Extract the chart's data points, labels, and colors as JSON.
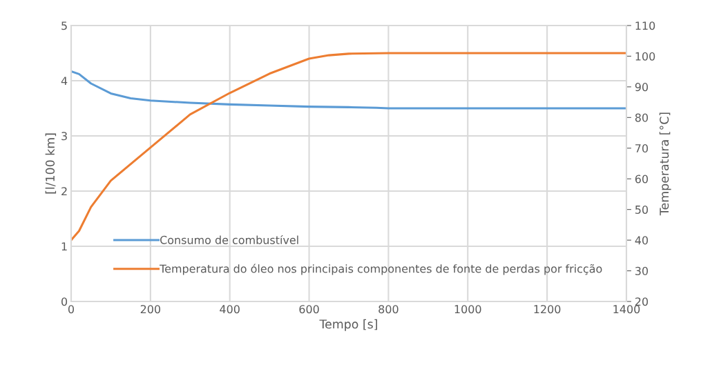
{
  "chart_data": {
    "type": "line",
    "xlabel": "Tempo [s]",
    "ylabel": "[l/100 km]",
    "y2label": "Temperatura [°C]",
    "xlim": [
      0,
      1400
    ],
    "xticks": [
      0,
      200,
      400,
      600,
      800,
      1000,
      1200,
      1400
    ],
    "ylim": [
      0,
      5
    ],
    "yticks": [
      0,
      1,
      2,
      3,
      4,
      5
    ],
    "y2lim": [
      20,
      110
    ],
    "y2ticks": [
      20,
      30,
      40,
      50,
      60,
      70,
      80,
      90,
      100,
      110
    ],
    "grid": true,
    "legend": "bottom left",
    "line_style": "solid",
    "series": [
      {
        "name": "Consumo de combustível",
        "color": "#5b9bd5",
        "x": [
          0,
          20,
          50,
          100,
          150,
          200,
          300,
          400,
          500,
          600,
          700,
          770,
          800,
          1400
        ],
        "values": [
          4.17,
          4.12,
          3.95,
          3.77,
          3.68,
          3.64,
          3.6,
          3.57,
          3.55,
          3.53,
          3.52,
          3.51,
          3.5,
          3.5
        ]
      },
      {
        "name": "Temperatura do óleo nos principais componentes de fonte de perdas por fricção",
        "color": "#ed7d31",
        "axis": "y2",
        "x": [
          0,
          20,
          50,
          100,
          200,
          300,
          400,
          500,
          600,
          650,
          700,
          800,
          1400
        ],
        "values": [
          40,
          43,
          50.8,
          59.4,
          70.2,
          81,
          88,
          94.3,
          99.2,
          100.3,
          100.8,
          101,
          101
        ]
      }
    ]
  }
}
